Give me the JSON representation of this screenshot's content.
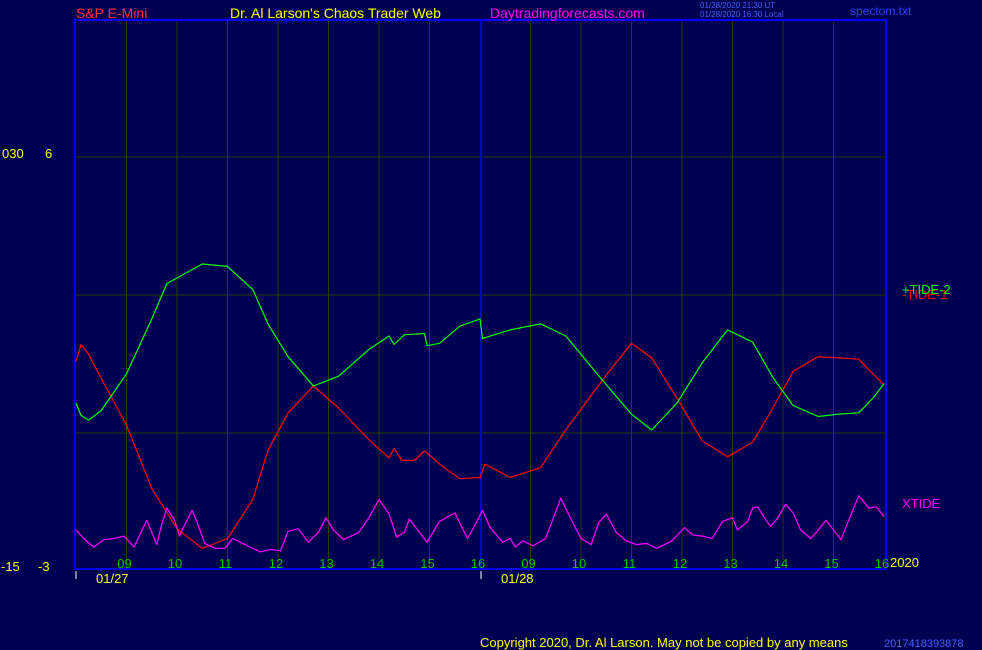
{
  "header": {
    "symbol": "S&P E-Mini",
    "title": "Dr. Al Larson's Chaos Trader Web",
    "site": "Daytradingforecasts.com",
    "timestamp_1": "01/28/2020 21:30 UT",
    "timestamp_2": "01/28/2020 16:30 Local",
    "file": "spectom.txt"
  },
  "left_axis": {
    "a_top": "030",
    "a_bottom": "-15",
    "b_top": "6",
    "b_bottom": "-3"
  },
  "footer": {
    "year": "2020",
    "copyright": "Copyright 2020, Dr. Al Larson. May not be copied by any means",
    "code": "2017418393878"
  },
  "colors": {
    "background": "#000050",
    "frame": "#0000ff",
    "grid": "#2a3a00",
    "tide1": "#ff0000",
    "tide2": "#00ff00",
    "xtide": "#ff00ff",
    "hour_labels": "#00c000",
    "date_labels": "#ffff00",
    "symbol": "#ff3030",
    "title": "#ffff00",
    "site": "#ff00ff"
  },
  "chart_data": {
    "type": "line",
    "x_hour_ticks": [
      "09",
      "10",
      "11",
      "12",
      "13",
      "14",
      "15",
      "16",
      "09",
      "10",
      "11",
      "12",
      "13",
      "14",
      "15",
      "16"
    ],
    "x_date_ticks": [
      "01/27",
      "01/28"
    ],
    "ylim_primary": [
      -15,
      30
    ],
    "ylim_secondary": [
      -3,
      6
    ],
    "x_range": [
      0,
      16
    ],
    "series": [
      {
        "name": "-TIDE-1",
        "color": "#ff0000",
        "points": [
          [
            0.0,
            2.0
          ],
          [
            0.1,
            3.4
          ],
          [
            0.25,
            2.6
          ],
          [
            0.5,
            0.6
          ],
          [
            1.0,
            -3.2
          ],
          [
            1.5,
            -8.4
          ],
          [
            2.0,
            -11.7
          ],
          [
            2.5,
            -13.3
          ],
          [
            3.0,
            -12.5
          ],
          [
            3.5,
            -9.3
          ],
          [
            3.8,
            -5.3
          ],
          [
            4.2,
            -2.2
          ],
          [
            4.7,
            0.0
          ],
          [
            5.2,
            -1.8
          ],
          [
            5.8,
            -4.4
          ],
          [
            6.2,
            -5.9
          ],
          [
            6.3,
            -5.1
          ],
          [
            6.45,
            -6.1
          ],
          [
            6.7,
            -6.1
          ],
          [
            6.9,
            -5.3
          ],
          [
            7.2,
            -6.4
          ],
          [
            7.6,
            -7.6
          ],
          [
            8.0,
            -7.5
          ],
          [
            8.1,
            -6.4
          ],
          [
            8.6,
            -7.5
          ],
          [
            9.2,
            -6.7
          ],
          [
            9.7,
            -3.6
          ],
          [
            10.5,
            0.9
          ],
          [
            11.0,
            3.5
          ],
          [
            11.4,
            2.3
          ],
          [
            11.9,
            -1.0
          ],
          [
            12.4,
            -4.5
          ],
          [
            12.9,
            -5.8
          ],
          [
            13.4,
            -4.6
          ],
          [
            13.8,
            -1.8
          ],
          [
            14.2,
            1.2
          ],
          [
            14.7,
            2.4
          ],
          [
            15.1,
            2.3
          ],
          [
            15.5,
            2.2
          ],
          [
            15.8,
            0.9
          ],
          [
            16.0,
            0.1
          ]
        ]
      },
      {
        "name": "+TIDE-2",
        "color": "#00ff00",
        "points": [
          [
            0.0,
            -1.4
          ],
          [
            0.1,
            -2.4
          ],
          [
            0.25,
            -2.8
          ],
          [
            0.5,
            -2.0
          ],
          [
            1.0,
            1.0
          ],
          [
            1.5,
            5.5
          ],
          [
            1.8,
            8.4
          ],
          [
            2.5,
            10.0
          ],
          [
            3.0,
            9.8
          ],
          [
            3.5,
            7.9
          ],
          [
            3.8,
            5.1
          ],
          [
            4.2,
            2.4
          ],
          [
            4.7,
            0.0
          ],
          [
            5.2,
            0.8
          ],
          [
            5.8,
            3.0
          ],
          [
            6.2,
            4.1
          ],
          [
            6.3,
            3.4
          ],
          [
            6.5,
            4.2
          ],
          [
            6.9,
            4.3
          ],
          [
            6.95,
            3.3
          ],
          [
            7.2,
            3.5
          ],
          [
            7.6,
            4.9
          ],
          [
            8.0,
            5.5
          ],
          [
            8.05,
            3.9
          ],
          [
            8.6,
            4.6
          ],
          [
            9.2,
            5.1
          ],
          [
            9.7,
            4.1
          ],
          [
            10.5,
            0.1
          ],
          [
            11.0,
            -2.3
          ],
          [
            11.4,
            -3.6
          ],
          [
            11.9,
            -1.4
          ],
          [
            12.4,
            1.9
          ],
          [
            12.9,
            4.6
          ],
          [
            13.4,
            3.6
          ],
          [
            13.8,
            0.7
          ],
          [
            14.2,
            -1.6
          ],
          [
            14.7,
            -2.5
          ],
          [
            15.1,
            -2.3
          ],
          [
            15.5,
            -2.2
          ],
          [
            15.8,
            -0.9
          ],
          [
            16.0,
            0.2
          ]
        ]
      },
      {
        "name": "XTIDE",
        "color": "#ff00ff",
        "points": [
          [
            0.0,
            -11.8
          ],
          [
            0.15,
            -12.5
          ],
          [
            0.35,
            -13.2
          ],
          [
            0.55,
            -12.6
          ],
          [
            0.75,
            -12.5
          ],
          [
            0.95,
            -12.3
          ],
          [
            1.15,
            -13.2
          ],
          [
            1.4,
            -11.0
          ],
          [
            1.6,
            -13.0
          ],
          [
            1.7,
            -11.3
          ],
          [
            1.8,
            -10.0
          ],
          [
            1.95,
            -11.0
          ],
          [
            2.05,
            -12.3
          ],
          [
            2.15,
            -11.4
          ],
          [
            2.3,
            -10.2
          ],
          [
            2.4,
            -11.2
          ],
          [
            2.55,
            -12.9
          ],
          [
            2.75,
            -13.3
          ],
          [
            2.95,
            -13.3
          ],
          [
            3.1,
            -12.5
          ],
          [
            3.3,
            -12.9
          ],
          [
            3.45,
            -13.2
          ],
          [
            3.65,
            -13.6
          ],
          [
            3.85,
            -13.4
          ],
          [
            4.05,
            -13.5
          ],
          [
            4.2,
            -11.9
          ],
          [
            4.4,
            -11.7
          ],
          [
            4.6,
            -12.8
          ],
          [
            4.8,
            -12.0
          ],
          [
            4.95,
            -10.8
          ],
          [
            5.1,
            -11.8
          ],
          [
            5.3,
            -12.6
          ],
          [
            5.6,
            -12.0
          ],
          [
            5.8,
            -10.8
          ],
          [
            6.0,
            -9.3
          ],
          [
            6.2,
            -10.5
          ],
          [
            6.35,
            -12.4
          ],
          [
            6.5,
            -12.0
          ],
          [
            6.6,
            -10.9
          ],
          [
            6.8,
            -12.0
          ],
          [
            6.95,
            -12.8
          ],
          [
            7.2,
            -11.1
          ],
          [
            7.5,
            -10.4
          ],
          [
            7.75,
            -12.5
          ],
          [
            7.85,
            -11.8
          ],
          [
            8.05,
            -10.2
          ],
          [
            8.2,
            -11.6
          ],
          [
            8.45,
            -12.8
          ],
          [
            8.6,
            -12.5
          ],
          [
            8.7,
            -13.2
          ],
          [
            8.85,
            -12.7
          ],
          [
            9.05,
            -13.1
          ],
          [
            9.3,
            -12.5
          ],
          [
            9.6,
            -9.2
          ],
          [
            9.8,
            -10.9
          ],
          [
            10.0,
            -12.5
          ],
          [
            10.2,
            -13.0
          ],
          [
            10.35,
            -11.2
          ],
          [
            10.5,
            -10.5
          ],
          [
            10.7,
            -12.0
          ],
          [
            10.9,
            -12.7
          ],
          [
            11.1,
            -13.0
          ],
          [
            11.3,
            -12.9
          ],
          [
            11.5,
            -13.3
          ],
          [
            11.8,
            -12.7
          ],
          [
            12.05,
            -11.6
          ],
          [
            12.2,
            -12.2
          ],
          [
            12.4,
            -12.3
          ],
          [
            12.6,
            -12.5
          ],
          [
            12.8,
            -11.1
          ],
          [
            13.0,
            -10.8
          ],
          [
            13.1,
            -11.8
          ],
          [
            13.3,
            -11.1
          ],
          [
            13.4,
            -10.0
          ],
          [
            13.5,
            -9.9
          ],
          [
            13.6,
            -10.6
          ],
          [
            13.75,
            -11.5
          ],
          [
            13.9,
            -10.8
          ],
          [
            14.05,
            -9.7
          ],
          [
            14.2,
            -10.4
          ],
          [
            14.35,
            -11.8
          ],
          [
            14.55,
            -12.5
          ],
          [
            14.7,
            -11.8
          ],
          [
            14.85,
            -11.0
          ],
          [
            15.0,
            -11.8
          ],
          [
            15.15,
            -12.6
          ],
          [
            15.3,
            -11.0
          ],
          [
            15.5,
            -9.0
          ],
          [
            15.7,
            -10.0
          ],
          [
            15.85,
            -9.9
          ],
          [
            16.0,
            -10.7
          ]
        ]
      }
    ]
  }
}
